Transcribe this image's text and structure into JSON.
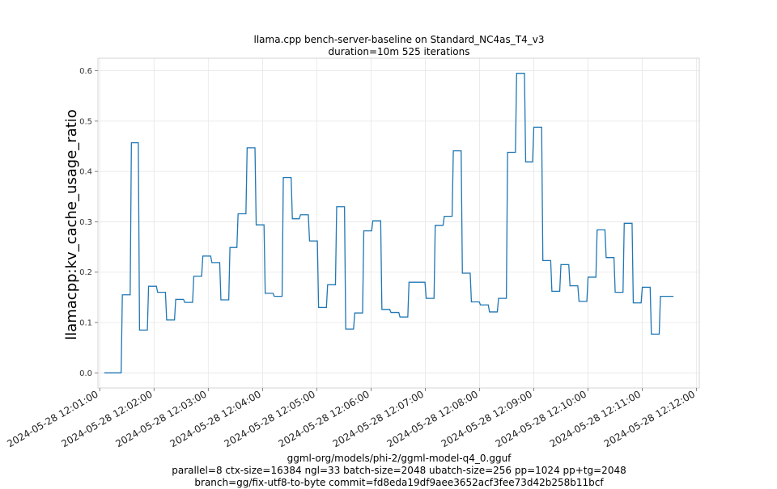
{
  "chart_data": {
    "type": "line",
    "title": "llama.cpp bench-server-baseline on Standard_NC4as_T4_v3",
    "subtitle": "duration=10m 525 iterations",
    "ylabel": "llamacpp:kv_cache_usage_ratio",
    "xlabel": "",
    "ylim": [
      -0.03,
      0.625
    ],
    "xlim": [
      "2024-05-28 12:00:58",
      "2024-05-28 12:12:03"
    ],
    "grid": true,
    "line_color": "#1f77b4",
    "y_ticks": [
      "0.0",
      "0.1",
      "0.2",
      "0.3",
      "0.4",
      "0.5",
      "0.6"
    ],
    "x_ticks": [
      "2024-05-28 12:01:00",
      "2024-05-28 12:02:00",
      "2024-05-28 12:03:00",
      "2024-05-28 12:04:00",
      "2024-05-28 12:05:00",
      "2024-05-28 12:06:00",
      "2024-05-28 12:07:00",
      "2024-05-28 12:08:00",
      "2024-05-28 12:09:00",
      "2024-05-28 12:10:00",
      "2024-05-28 12:11:00",
      "2024-05-28 12:12:00"
    ],
    "series": [
      {
        "x": [
          "2024-05-28 12:01:05",
          "2024-05-28 12:01:15",
          "2024-05-28 12:01:25",
          "2024-05-28 12:01:35",
          "2024-05-28 12:01:44",
          "2024-05-28 12:01:54",
          "2024-05-28 12:02:04",
          "2024-05-28 12:02:14",
          "2024-05-28 12:02:24",
          "2024-05-28 12:02:34",
          "2024-05-28 12:02:44",
          "2024-05-28 12:02:54",
          "2024-05-28 12:03:04",
          "2024-05-28 12:03:14",
          "2024-05-28 12:03:24",
          "2024-05-28 12:03:33",
          "2024-05-28 12:03:43",
          "2024-05-28 12:03:53",
          "2024-05-28 12:04:03",
          "2024-05-28 12:04:13",
          "2024-05-28 12:04:23",
          "2024-05-28 12:04:33",
          "2024-05-28 12:04:42",
          "2024-05-28 12:04:52",
          "2024-05-28 12:05:02",
          "2024-05-28 12:05:12",
          "2024-05-28 12:05:22",
          "2024-05-28 12:05:32",
          "2024-05-28 12:05:42",
          "2024-05-28 12:05:52",
          "2024-05-28 12:06:02",
          "2024-05-28 12:06:12",
          "2024-05-28 12:06:22",
          "2024-05-28 12:06:32",
          "2024-05-28 12:06:42",
          "2024-05-28 12:06:52",
          "2024-05-28 12:07:01",
          "2024-05-28 12:07:11",
          "2024-05-28 12:07:21",
          "2024-05-28 12:07:31",
          "2024-05-28 12:07:41",
          "2024-05-28 12:07:51",
          "2024-05-28 12:08:01",
          "2024-05-28 12:08:11",
          "2024-05-28 12:08:21",
          "2024-05-28 12:08:31",
          "2024-05-28 12:08:41",
          "2024-05-28 12:08:51",
          "2024-05-28 12:09:00",
          "2024-05-28 12:09:10",
          "2024-05-28 12:09:20",
          "2024-05-28 12:09:30",
          "2024-05-28 12:09:40",
          "2024-05-28 12:09:50",
          "2024-05-28 12:10:00",
          "2024-05-28 12:10:10",
          "2024-05-28 12:10:20",
          "2024-05-28 12:10:30",
          "2024-05-28 12:10:40",
          "2024-05-28 12:10:50",
          "2024-05-28 12:11:00",
          "2024-05-28 12:11:10",
          "2024-05-28 12:11:20",
          "2024-05-28 12:11:30"
        ],
        "values": [
          0.0,
          0.0,
          0.155,
          0.457,
          0.085,
          0.172,
          0.16,
          0.105,
          0.146,
          0.14,
          0.192,
          0.232,
          0.219,
          0.145,
          0.249,
          0.316,
          0.447,
          0.294,
          0.158,
          0.152,
          0.388,
          0.306,
          0.314,
          0.262,
          0.13,
          0.175,
          0.33,
          0.087,
          0.119,
          0.282,
          0.302,
          0.126,
          0.12,
          0.111,
          0.18,
          0.18,
          0.148,
          0.293,
          0.311,
          0.441,
          0.198,
          0.141,
          0.135,
          0.121,
          0.148,
          0.438,
          0.595,
          0.419,
          0.488,
          0.223,
          0.162,
          0.215,
          0.173,
          0.142,
          0.19,
          0.284,
          0.229,
          0.16,
          0.297,
          0.139,
          0.17,
          0.077,
          0.152,
          0.152
        ]
      }
    ]
  },
  "footer": {
    "line1": "ggml-org/models/phi-2/ggml-model-q4_0.gguf",
    "line2": "parallel=8 ctx-size=16384 ngl=33 batch-size=2048 ubatch-size=256 pp=1024 pp+tg=2048",
    "line3": "branch=gg/fix-utf8-to-byte commit=fd8eda19df9aee3652acf3fee73d42b258b11bcf"
  }
}
